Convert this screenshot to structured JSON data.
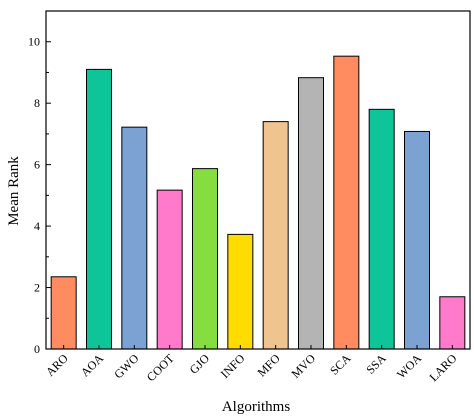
{
  "chart_data": {
    "type": "bar",
    "title": "",
    "xlabel": "Algorithms",
    "ylabel": "Mean Rank",
    "ylim": [
      0,
      11
    ],
    "yticks": [
      0,
      2,
      4,
      6,
      8,
      10
    ],
    "grid": false,
    "categories": [
      "ARO",
      "AOA",
      "GWO",
      "COOT",
      "GJO",
      "INFO",
      "MFO",
      "MVO",
      "SCA",
      "SSA",
      "WOA",
      "LARO"
    ],
    "values": [
      2.35,
      9.1,
      7.22,
      5.17,
      5.87,
      3.73,
      7.4,
      8.83,
      9.53,
      7.8,
      7.08,
      1.7
    ],
    "colors": [
      "#FF8C60",
      "#0DC599",
      "#7BA2D3",
      "#FF7ACB",
      "#86DD40",
      "#FFDC00",
      "#EFC48E",
      "#B4B4B4",
      "#FF8C60",
      "#0DC599",
      "#7BA2D3",
      "#FF7ACB"
    ]
  }
}
